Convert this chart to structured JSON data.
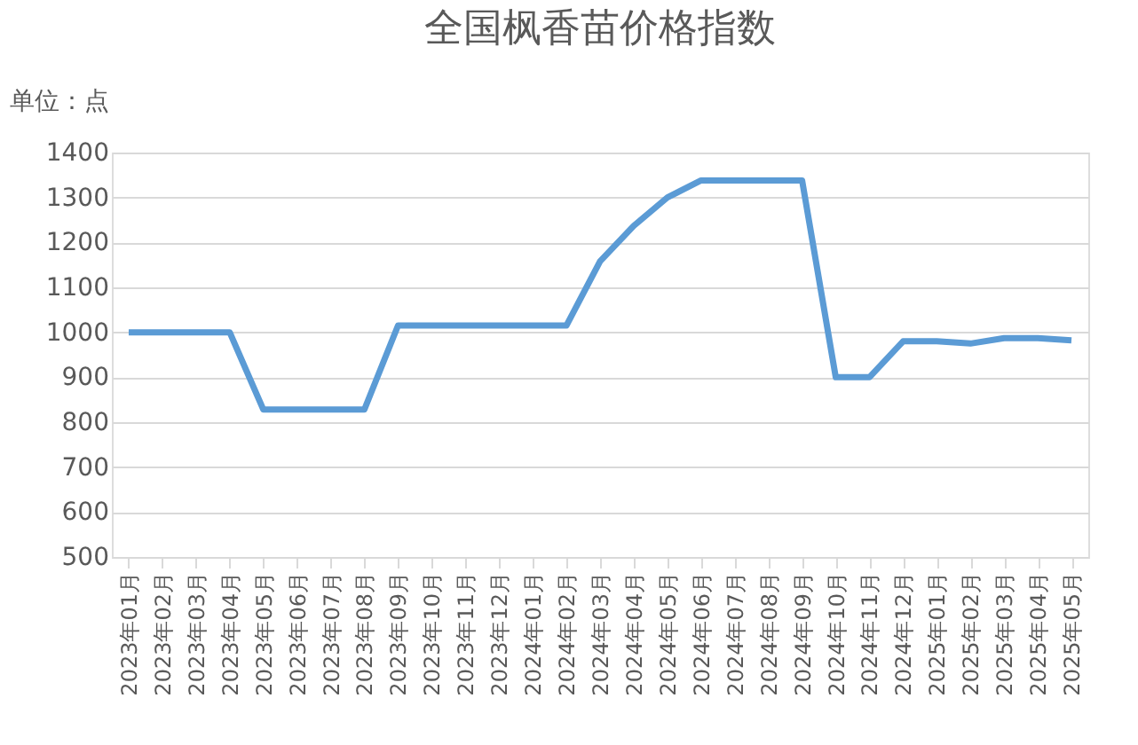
{
  "chart_data": {
    "type": "line",
    "title": "全国枫香苗价格指数",
    "ylabel": "单位：点",
    "categories": [
      "2023年01月",
      "2023年02月",
      "2023年03月",
      "2023年04月",
      "2023年05月",
      "2023年06月",
      "2023年07月",
      "2023年08月",
      "2023年09月",
      "2023年10月",
      "2023年11月",
      "2023年12月",
      "2024年01月",
      "2024年02月",
      "2024年03月",
      "2024年04月",
      "2024年05月",
      "2024年06月",
      "2024年07月",
      "2024年08月",
      "2024年09月",
      "2024年10月",
      "2024年11月",
      "2024年12月",
      "2025年01月",
      "2025年02月",
      "2025年03月",
      "2025年04月",
      "2025年05月"
    ],
    "series": [
      {
        "color": "#5b9bd5",
        "values": [
          1000,
          1000,
          1000,
          1000,
          828,
          828,
          828,
          828,
          1015,
          1015,
          1015,
          1015,
          1015,
          1015,
          1158,
          1237,
          1300,
          1338,
          1338,
          1338,
          1338,
          900,
          900,
          980,
          980,
          975,
          987,
          987,
          982
        ]
      }
    ],
    "ylim": [
      500,
      1400
    ],
    "yticks": [
      500,
      600,
      700,
      800,
      900,
      1000,
      1100,
      1200,
      1300,
      1400
    ],
    "grid": "y",
    "legend": false,
    "marker": "none",
    "line_style": "solid"
  }
}
